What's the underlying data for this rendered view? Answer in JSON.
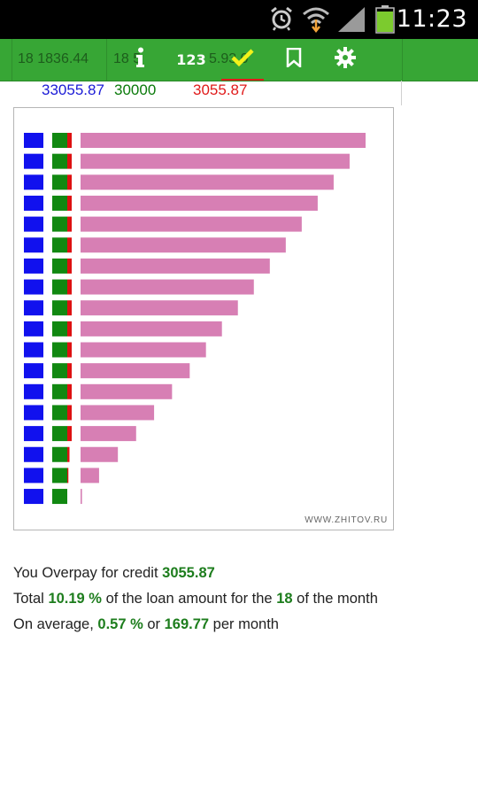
{
  "status_bar": {
    "time": "11:23",
    "icons": [
      "alarm-icon",
      "wifi-icon",
      "signal-icon",
      "battery-icon"
    ],
    "battery_color": "#7ccb2e"
  },
  "action_bar": {
    "background": "#37a635",
    "ghost_text_1": "18  1836.44",
    "ghost_text_2": "18  5",
    "ghost_text_3": "5.93  0",
    "buttons": [
      {
        "name": "info-button",
        "icon": "info-icon"
      },
      {
        "name": "numbers-button",
        "label": "123"
      },
      {
        "name": "check-button",
        "icon": "check-icon"
      },
      {
        "name": "bookmark-button",
        "icon": "bookmark-icon"
      },
      {
        "name": "settings-button",
        "icon": "gear-icon"
      }
    ]
  },
  "values_row": {
    "total": "33055.87",
    "loan": "30000",
    "overpay": "3055.87"
  },
  "chart_data": {
    "type": "bar",
    "orientation": "horizontal",
    "rows": 18,
    "series": [
      {
        "color": "#1111ee",
        "values": [
          1,
          1,
          1,
          1,
          1,
          1,
          1,
          1,
          1,
          1,
          1,
          1,
          1,
          1,
          1,
          1,
          1,
          1
        ]
      },
      {
        "color": "#118811",
        "values": [
          1,
          1,
          1,
          1,
          1,
          1,
          1,
          1,
          1,
          1,
          1,
          1,
          1,
          1,
          1,
          1,
          1,
          1
        ]
      },
      {
        "color": "#dd1111",
        "values": [
          0.2,
          0.2,
          0.2,
          0.2,
          0.2,
          0.2,
          0.2,
          0.2,
          0.2,
          0.2,
          0.2,
          0.2,
          0.2,
          0.2,
          0.2,
          0.1,
          0.05,
          0
        ]
      },
      {
        "color": "#d77fb4",
        "values": [
          100,
          94.4,
          88.8,
          83.2,
          77.6,
          72,
          66.4,
          60.8,
          55.2,
          49.6,
          44,
          38.3,
          32.1,
          25.8,
          19.5,
          13.1,
          6.5,
          0.5
        ]
      }
    ],
    "watermark": "WWW.ZHITOV.RU"
  },
  "summary": {
    "line1_prefix": "You Overpay for credit ",
    "line1_value": "3055.87",
    "line2_prefix": "Total ",
    "line2_percent": "10.19 %",
    "line2_middle": " of the loan amount for the ",
    "line2_months": "18",
    "line2_suffix": " of the month",
    "line3_prefix": "On average, ",
    "line3_percent": "0.57 %",
    "line3_middle": " or ",
    "line3_amount": "169.77",
    "line3_suffix": " per month"
  }
}
